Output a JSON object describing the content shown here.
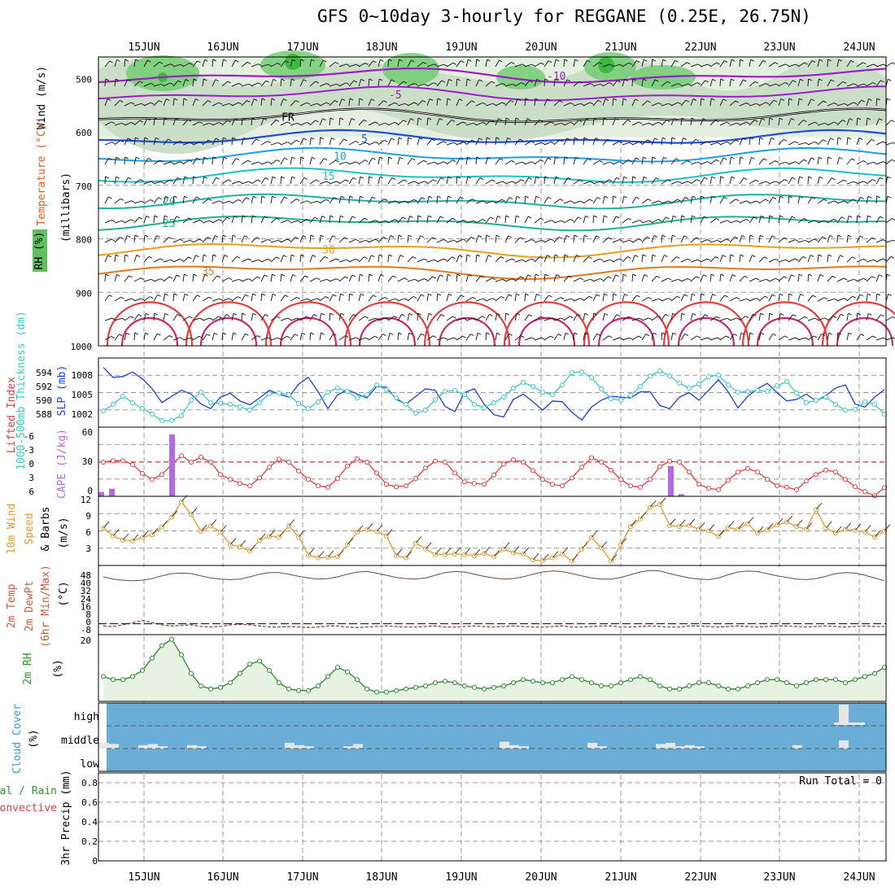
{
  "title": "GFS 0~10day 3-hourly for REGGANE (0.25E, 26.75N)",
  "dates": [
    "15JUN",
    "16JUN",
    "17JUN",
    "18JUN",
    "19JUN",
    "20JUN",
    "21JUN",
    "22JUN",
    "23JUN",
    "24JUN"
  ],
  "panels": {
    "upper": {
      "label_wind": "Wind (m/s)",
      "label_temp": "Temperature (°C)",
      "label_mb": "(millibars)",
      "label_rh": "RH (%)",
      "pressure_ticks": [
        "500",
        "600",
        "700",
        "800",
        "900",
        "1000"
      ],
      "isotherm_labels": [
        "-10",
        "-5",
        "FR",
        "5",
        "10",
        "15",
        "20",
        "25",
        "30",
        "35"
      ]
    },
    "thickness": {
      "label_left": "1000-500mb Thickness (dm)",
      "label_right": "SLP (mb)",
      "left_ticks": [
        "594",
        "592",
        "590",
        "588"
      ],
      "right_ticks": [
        "1008",
        "1005",
        "1002"
      ]
    },
    "lifted": {
      "label_left": "Lifted Index",
      "label_right": "CAPE (J/kg)",
      "left_ticks": [
        "-6",
        "-3",
        "0",
        "3",
        "6"
      ],
      "right_ticks": [
        "60",
        "30",
        "0"
      ]
    },
    "wind10m": {
      "label_a": "10m Wind",
      "label_b": "Speed",
      "label_c": "& Barbs",
      "unit": "(m/s)",
      "ticks": [
        "12",
        "9",
        "6",
        "3"
      ]
    },
    "temp2m": {
      "label_a": "2m Temp",
      "label_b": "2m DewPt",
      "label_c": "(6hr Min/Max)",
      "unit": "(°C)",
      "ticks": [
        "48",
        "40",
        "32",
        "24",
        "16",
        "8",
        "0",
        "-8"
      ]
    },
    "rh2m": {
      "label": "2m RH",
      "unit": "(%)",
      "tick": "20"
    },
    "cloud": {
      "label": "Cloud Cover",
      "unit": "(%)",
      "levels": [
        "high",
        "middle",
        "low"
      ]
    },
    "precip": {
      "label_a": "Total / Rain",
      "label_b": "Convective",
      "label_c": "3hr Precip (mm)",
      "ticks": [
        "0.8",
        "0.6",
        "0.4",
        "0.2",
        "0"
      ],
      "run_total": "Run Total = 0"
    }
  },
  "colors": {
    "grid": "#999999",
    "cloud_bg": "#6aaed8",
    "cloud_fill": "#e6e6e6",
    "rh_fill": "#e6f3e3",
    "cape": "#b36ae2",
    "lifted": "#e04040",
    "wind": "#e59a2e",
    "slp": "#1e3fd0",
    "thickness": "#3cc8c8"
  },
  "chart_data": [
    {
      "type": "line",
      "name": "1000-500mb thickness & SLP",
      "x_unit": "3-hourly steps from 14JUN 12Z",
      "series": [
        {
          "name": "SLP (mb)",
          "values": [
            1008.8,
            1007.5,
            1007.6,
            1008.2,
            1007.3,
            1006,
            1004.2,
            1005,
            1005.8,
            1005.3,
            1004,
            1003.4,
            1004.9,
            1005.4,
            1004.4,
            1003.9,
            1004.8,
            1005.8,
            1005.3,
            1004.9,
            1006.6,
            1007.5,
            1005.6,
            1003.4,
            1005.2,
            1005.9,
            1005.3,
            1004.8,
            1006.3,
            1006.2,
            1004.6,
            1004,
            1005,
            1006,
            1005.8,
            1003.7,
            1003,
            1005.5,
            1006,
            1004,
            1002.6,
            1002.3,
            1004.6,
            1005.3,
            1004.3,
            1003.2,
            1004.4,
            1004.3,
            1002.9,
            1001.9,
            1003.6,
            1004.5,
            1005,
            1004.9,
            1004.8,
            1005.6,
            1005.6,
            1003.8,
            1003.4,
            1004.9,
            1005.5,
            1004.5,
            1005.8,
            1007.2,
            1005.6,
            1003.5,
            1005,
            1006,
            1006.7,
            1005.5,
            1004.4,
            1004.6,
            1005.3,
            1004.4,
            1005.1,
            1006.1,
            1006.5,
            1004,
            1003.6,
            1004.9,
            1005.9
          ]
        },
        {
          "name": "1000-500mb Thickness (dm)",
          "values": [
            588.5,
            589.3,
            590.3,
            589.5,
            588.8,
            588.1,
            587.3,
            587.3,
            587.9,
            589.8,
            590.8,
            589.5,
            589.4,
            589.3,
            589,
            588.6,
            589.5,
            590.6,
            590.7,
            590.5,
            589.4,
            588.8,
            589.6,
            590.8,
            591.3,
            590.9,
            590.1,
            590.5,
            591.7,
            591.1,
            590.1,
            589.3,
            588.2,
            588.6,
            589.9,
            590.9,
            591,
            590.5,
            589.3,
            588.9,
            589.5,
            590.2,
            591.3,
            592,
            591.5,
            590.8,
            590.5,
            591.7,
            593.2,
            593.3,
            592.6,
            591.2,
            590,
            589.8,
            590.4,
            591.5,
            592.8,
            593.4,
            592.8,
            591.9,
            591.3,
            591.8,
            592.7,
            592.9,
            591.7,
            590.8,
            590.9,
            591,
            590.9,
            591.6,
            592.1,
            590.7,
            589.5,
            589.8,
            590.2,
            589.3,
            588.6,
            588.7,
            589.6,
            589.3,
            588.1
          ]
        }
      ]
    },
    {
      "type": "bar",
      "name": "Lifted Index & CAPE",
      "series": [
        {
          "name": "Lifted Index",
          "values": [
            0,
            -0.3,
            -0.3,
            0.5,
            2.3,
            3.5,
            2.5,
            0.5,
            -1.3,
            0,
            -1,
            0,
            2.5,
            3.5,
            4.3,
            4.8,
            3.2,
            1,
            -0.6,
            0,
            1.8,
            3.5,
            4.8,
            5.1,
            3.3,
            0.8,
            -0.7,
            0,
            2.2,
            4.5,
            5,
            4.8,
            3.3,
            1.2,
            -0.2,
            0,
            2.2,
            4,
            4.3,
            4.5,
            2.6,
            0.4,
            -0.5,
            0,
            1.7,
            3.5,
            4.5,
            4.8,
            3.2,
            1,
            -0.9,
            0,
            1.6,
            3.5,
            4.8,
            5.1,
            3.5,
            0.9,
            -0.2,
            0,
            2,
            4.5,
            5.3,
            5.6,
            3.7,
            2,
            1.3,
            2,
            3.5,
            4.8,
            5.1,
            5.6,
            3.8,
            2.5,
            1.6,
            2,
            3.5,
            5,
            6,
            6.8,
            5.2
          ]
        },
        {
          "name": "CAPE (J/kg)",
          "categories": [
            "15JUN 00Z",
            "15JUN 03Z",
            "15JUN 21Z",
            "21JUN 15Z",
            "21JUN 18Z"
          ],
          "values": [
            4,
            7,
            57,
            28,
            2
          ]
        }
      ]
    },
    {
      "type": "line",
      "name": "10m Wind Speed",
      "series": [
        {
          "name": "Speed (m/s)",
          "values": [
            7,
            5.6,
            4.8,
            4.7,
            5.3,
            5.8,
            7.2,
            9,
            11.8,
            9.5,
            6.4,
            7.4,
            6.3,
            4,
            3.6,
            2.8,
            4.8,
            5.5,
            5.4,
            7.4,
            5.4,
            2.1,
            1.6,
            1.7,
            1.8,
            4,
            6.3,
            6.7,
            6.4,
            5.6,
            2,
            1.6,
            4.3,
            3.2,
            2.2,
            2.2,
            2.3,
            2.2,
            2,
            2.4,
            1.8,
            3.2,
            2.5,
            2.3,
            1.2,
            1.1,
            1.6,
            2.3,
            1,
            3.2,
            5.3,
            3.4,
            1,
            4,
            7.3,
            8.7,
            10.8,
            11.3,
            7.5,
            7.3,
            7.5,
            6.8,
            6.5,
            5.5,
            7.1,
            6.8,
            7.8,
            6.1,
            6.7,
            7.6,
            8.1,
            7.3,
            6.8,
            10.4,
            7,
            6.1,
            6.8,
            6.6,
            6.3,
            5.4,
            6.5
          ]
        }
      ]
    },
    {
      "type": "area",
      "name": "2m Temp & DewPt",
      "series": [
        {
          "name": "2m Temp (°C)",
          "values": [
            43,
            41,
            40,
            39.5,
            40,
            41.5,
            44,
            46,
            46.5,
            46,
            44,
            42,
            41,
            40.5,
            41,
            43,
            45.5,
            47,
            47,
            45.5,
            43.5,
            42,
            41,
            41.5,
            43,
            45.5,
            47.5,
            48,
            46.5,
            44.5,
            42.5,
            41.5,
            41,
            42,
            44.5,
            47,
            48,
            47.5,
            45.5,
            43.5,
            42,
            41,
            41.5,
            43,
            45.5,
            47.5,
            48.5,
            48,
            46,
            44,
            42,
            41,
            41,
            42.5,
            45,
            47.5,
            49,
            48.5,
            46,
            44,
            42,
            41,
            40.5,
            42,
            45,
            47.5,
            48.5,
            48,
            46,
            44,
            42.5,
            41,
            40.5,
            41.5,
            43.5,
            46,
            47,
            46.5,
            44.5,
            42,
            39.5
          ]
        },
        {
          "name": "2m DewPt (°C)",
          "values": [
            -2,
            -2.5,
            -1,
            1,
            3,
            1,
            -1,
            -2,
            -1.5,
            -1,
            -2.5,
            -3,
            -2.5,
            -1,
            -0.5,
            -1,
            -2,
            -3,
            -3,
            -2.5,
            -3,
            -3.5,
            -3,
            -2,
            -2,
            -3,
            -3.5,
            -3,
            -2.5,
            -2,
            -2.5,
            -3,
            -3,
            -2.5,
            -2,
            -3,
            -3,
            -2.5,
            -2,
            -2.5,
            -3,
            -2.5,
            -2,
            -2.5,
            -3,
            -3,
            -2.5,
            -2,
            -3,
            -3,
            -2.5,
            -2,
            -2,
            -3,
            -3,
            -2.5,
            -2,
            -2.5,
            -3,
            -3,
            -2,
            -2,
            -2.5,
            -3,
            -2.5,
            -2,
            -2.5,
            -3,
            -2.5,
            -2,
            -2,
            -2.5,
            -3,
            -2.5,
            -2,
            -2.5,
            -3,
            -2.5,
            -2,
            -2.5,
            -2.5
          ]
        }
      ]
    },
    {
      "type": "area",
      "name": "2m RH",
      "series": [
        {
          "name": "2m RH (%)",
          "values": [
            8,
            7,
            7,
            8,
            10,
            14,
            18,
            20,
            15,
            9,
            5,
            4,
            4.5,
            6,
            9,
            12,
            13,
            10,
            6,
            4,
            3.5,
            3.5,
            5,
            8,
            11,
            9.5,
            7,
            4,
            3,
            3,
            3.5,
            4,
            4.5,
            5,
            6,
            6.5,
            6,
            5,
            4.5,
            4,
            4.5,
            5,
            6,
            7,
            6.5,
            6,
            6,
            7,
            8,
            7,
            6,
            5,
            5,
            6,
            7,
            8,
            7,
            5,
            4,
            4,
            5,
            6,
            6,
            5,
            4,
            4,
            5,
            6,
            7,
            7,
            6,
            5,
            6,
            7,
            7,
            7,
            6,
            7,
            8,
            9,
            11
          ]
        }
      ]
    },
    {
      "type": "bar",
      "name": "Cloud Cover",
      "series": [
        {
          "name": "high",
          "values": [
            0,
            0,
            0,
            0,
            0,
            0,
            0,
            0,
            0,
            0,
            0,
            0,
            0,
            0,
            0,
            0,
            0,
            0,
            0,
            0,
            0,
            0,
            0,
            0,
            0,
            0,
            0,
            0,
            0,
            0,
            0,
            0,
            0,
            0,
            0,
            0,
            0,
            0,
            0,
            0,
            0,
            0,
            0,
            0,
            0,
            0,
            0,
            0,
            0,
            0,
            0,
            0,
            0,
            0,
            0,
            0,
            0,
            0,
            0,
            0,
            0,
            0,
            0,
            0,
            0,
            0,
            0,
            0,
            0,
            0,
            0,
            0,
            0,
            0,
            0,
            0,
            100,
            0,
            0,
            0,
            0
          ]
        },
        {
          "name": "middle",
          "values": [
            25,
            20,
            0,
            0,
            15,
            20,
            10,
            0,
            0,
            15,
            10,
            0,
            0,
            0,
            0,
            0,
            0,
            0,
            0,
            25,
            15,
            10,
            0,
            0,
            0,
            10,
            20,
            0,
            0,
            0,
            0,
            0,
            0,
            0,
            0,
            0,
            0,
            0,
            0,
            0,
            0,
            30,
            15,
            10,
            0,
            0,
            0,
            0,
            0,
            0,
            25,
            10,
            0,
            0,
            0,
            0,
            0,
            20,
            25,
            10,
            15,
            10,
            0,
            0,
            0,
            0,
            0,
            0,
            0,
            0,
            0,
            15,
            0,
            0,
            0,
            0,
            0,
            0,
            0,
            0,
            0
          ]
        },
        {
          "name": "low",
          "values": [
            0,
            0,
            0,
            0,
            0,
            0,
            0,
            0,
            0,
            0,
            0,
            0,
            0,
            0,
            0,
            0,
            0,
            0,
            0,
            0,
            0,
            0,
            0,
            0,
            0,
            0,
            0,
            0,
            0,
            0,
            0,
            0,
            0,
            0,
            0,
            0,
            0,
            0,
            0,
            0,
            0,
            0,
            0,
            0,
            0,
            0,
            0,
            0,
            0,
            0,
            0,
            0,
            0,
            0,
            0,
            0,
            0,
            0,
            0,
            0,
            0,
            0,
            0,
            0,
            0,
            0,
            0,
            0,
            0,
            0,
            0,
            0,
            0,
            0,
            0,
            0,
            30,
            0,
            0,
            0,
            0
          ]
        }
      ]
    },
    {
      "type": "bar",
      "name": "3hr Precip",
      "series": [
        {
          "name": "3hr Precip (mm)",
          "values": []
        }
      ],
      "ylim": [
        0,
        0.9
      ]
    }
  ]
}
